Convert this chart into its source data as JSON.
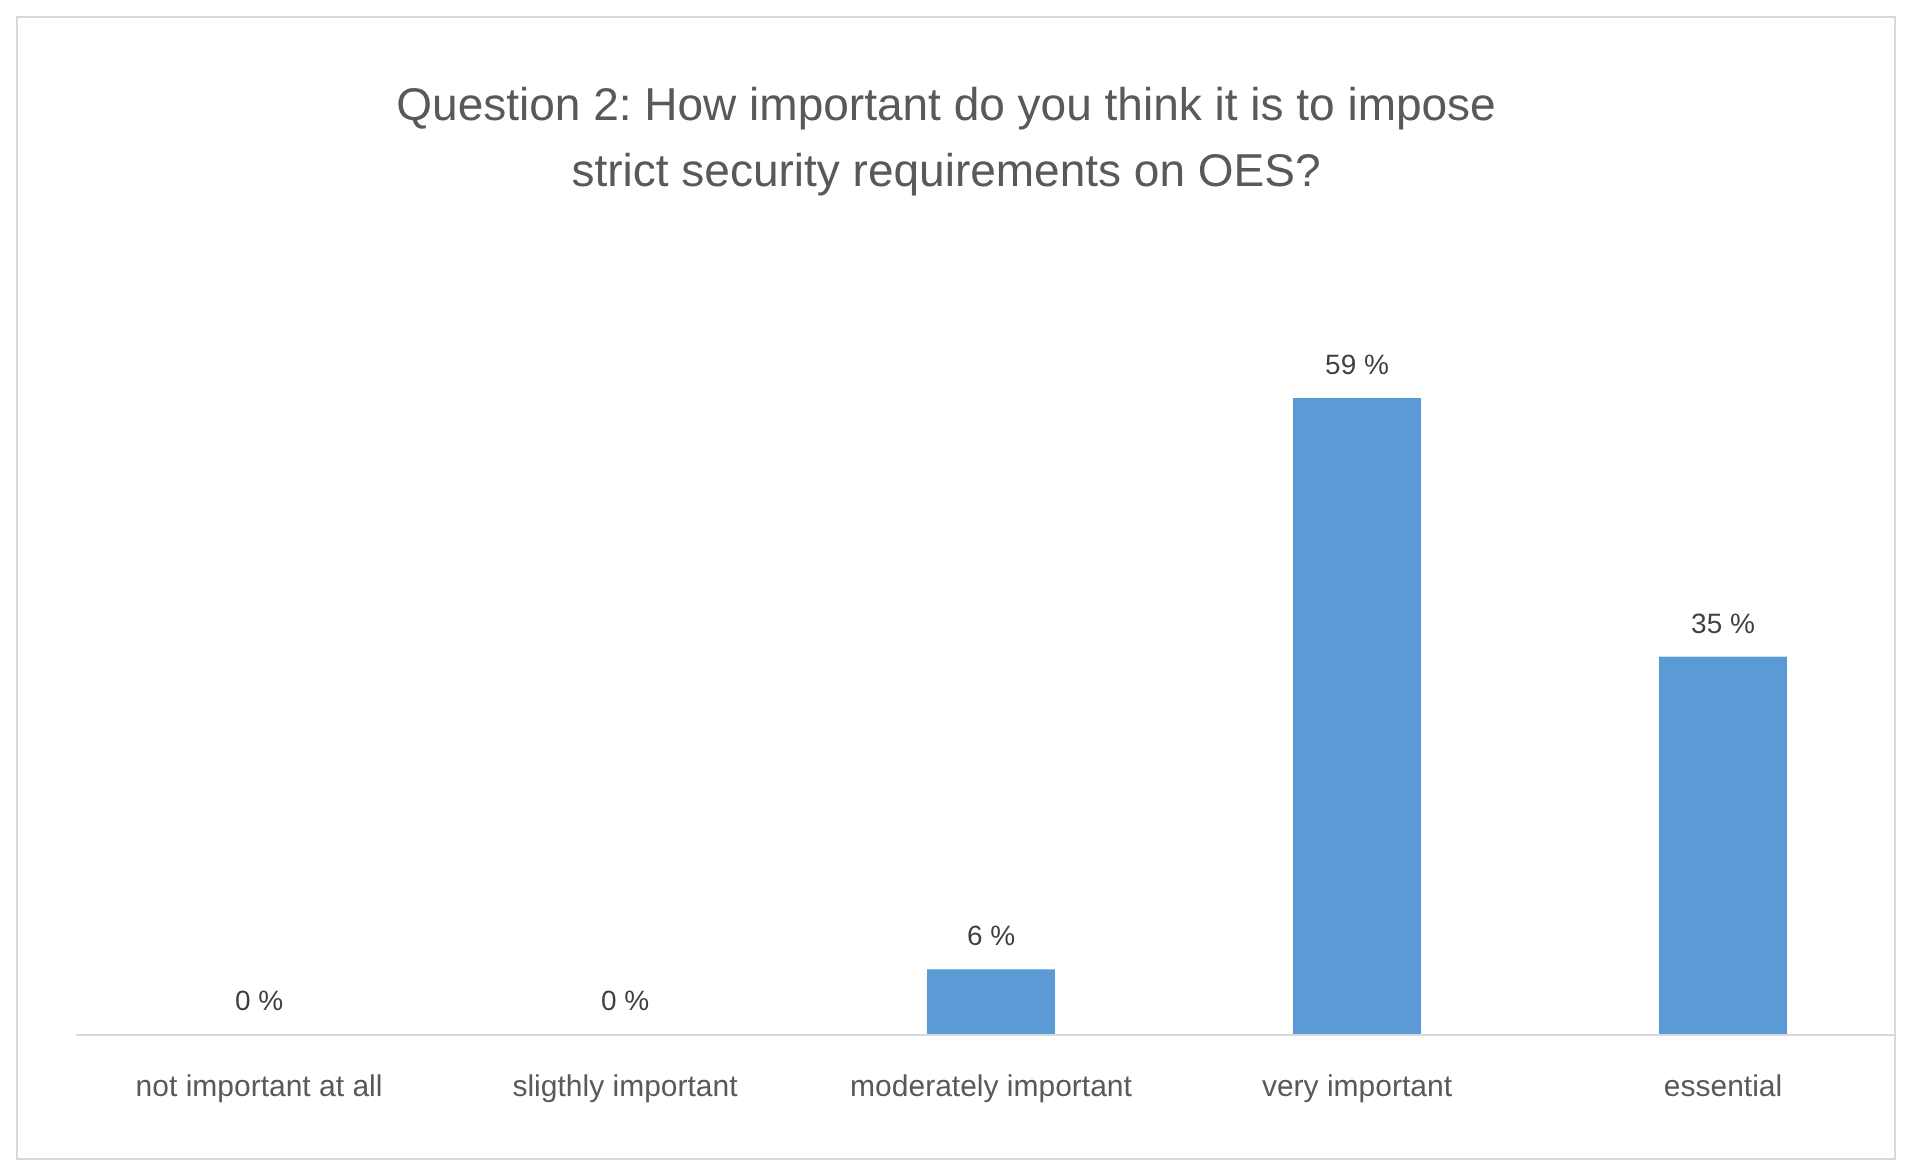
{
  "chart_data": {
    "type": "bar",
    "title": "Question 2: How important do you think it is to impose strict security requirements on OES?",
    "categories": [
      "not important at all",
      "sligthly important",
      "moderately important",
      "very important",
      "essential"
    ],
    "values": [
      0,
      0,
      6,
      59,
      35
    ],
    "value_labels": [
      "0 %",
      "0 %",
      "6 %",
      "59 %",
      "35 %"
    ],
    "color": "#5b9bd5",
    "grid": false
  }
}
